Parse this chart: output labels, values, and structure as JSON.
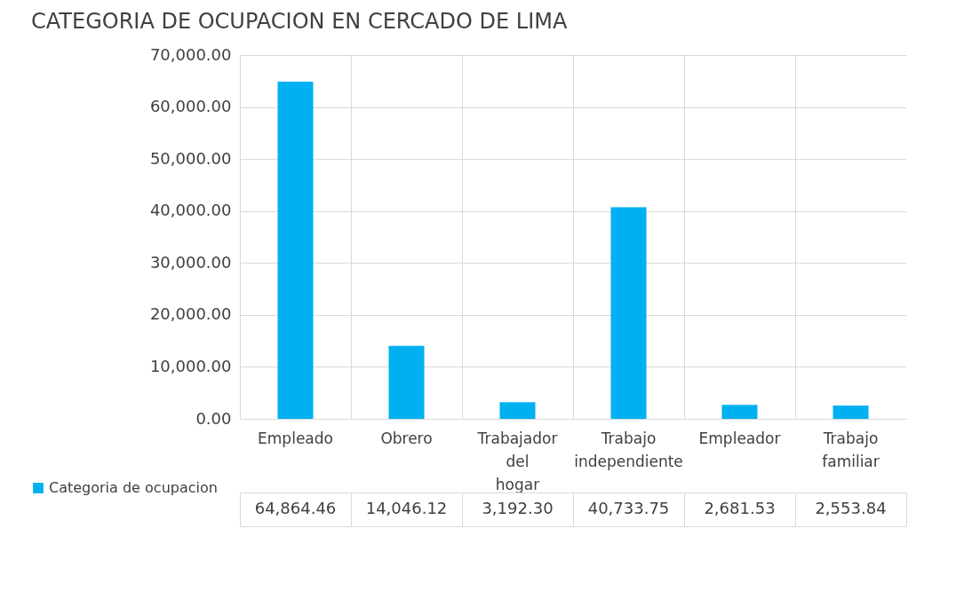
{
  "chart_data": {
    "type": "bar",
    "title": "CATEGORIA DE OCUPACION EN CERCADO DE LIMA",
    "categories": [
      "Empleado",
      "Obrero",
      "Trabajador del hogar",
      "Trabajo independiente",
      "Empleador",
      "Trabajo familiar"
    ],
    "series": [
      {
        "name": "Categoria de ocupacion",
        "color": "#00b0f0",
        "values": [
          64864.46,
          14046.12,
          3192.3,
          40733.75,
          2681.53,
          2553.84
        ],
        "value_labels": [
          "64,864.46",
          "14,046.12",
          "3,192.30",
          "40,733.75",
          "2,681.53",
          "2,553.84"
        ]
      }
    ],
    "ylim": [
      0,
      70000
    ],
    "yticks": [
      {
        "value": 0,
        "label": "0.00"
      },
      {
        "value": 10000,
        "label": "10,000.00"
      },
      {
        "value": 20000,
        "label": "20,000.00"
      },
      {
        "value": 30000,
        "label": "30,000.00"
      },
      {
        "value": 40000,
        "label": "40,000.00"
      },
      {
        "value": 50000,
        "label": "50,000.00"
      },
      {
        "value": 60000,
        "label": "60,000.00"
      },
      {
        "value": 70000,
        "label": "70,000.00"
      }
    ],
    "grid": "y",
    "legend": "bottom left"
  }
}
